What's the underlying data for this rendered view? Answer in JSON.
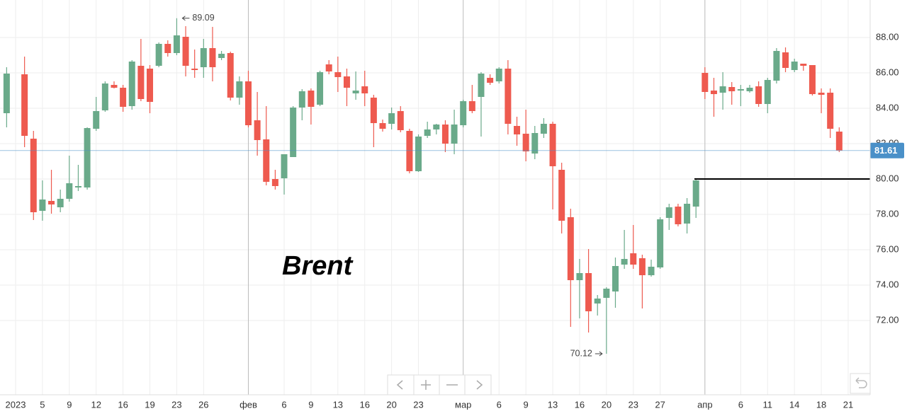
{
  "chart_data": {
    "type": "candlestick",
    "title": "Brent",
    "categories": [
      null,
      "2023",
      null,
      null,
      "5",
      null,
      null,
      "9",
      null,
      null,
      "12",
      null,
      null,
      "16",
      null,
      null,
      "19",
      null,
      null,
      "23",
      null,
      null,
      "26",
      null,
      null,
      null,
      null,
      "фев",
      null,
      null,
      null,
      "6",
      null,
      null,
      "9",
      null,
      null,
      "13",
      null,
      null,
      "16",
      null,
      null,
      "20",
      null,
      null,
      "23",
      null,
      null,
      null,
      null,
      "мар",
      null,
      null,
      null,
      "6",
      null,
      null,
      "9",
      null,
      null,
      "13",
      null,
      null,
      "16",
      null,
      null,
      "20",
      null,
      null,
      "23",
      null,
      null,
      "27",
      null,
      null,
      null,
      null,
      "апр",
      null,
      null,
      null,
      "6",
      null,
      null,
      "11",
      null,
      null,
      "14",
      null,
      null,
      "18",
      null,
      null,
      "21"
    ],
    "open": [
      83.72,
      null,
      85.92,
      82.28,
      78.2,
      78.76,
      78.4,
      78.88,
      79.52,
      79.52,
      82.84,
      83.88,
      85.32,
      85.16,
      84.12,
      86.4,
      86.24,
      86.4,
      87.64,
      87.12,
      88.04,
      86.24,
      86.32,
      87.4,
      86.84,
      87.12,
      84.6,
      85.52,
      83.32,
      82.24,
      80.0,
      80.04,
      81.24,
      84.04,
      85.0,
      84.2,
      86.48,
      86.04,
      85.8,
      84.84,
      85.24,
      84.6,
      83.16,
      83.12,
      83.84,
      82.72,
      80.44,
      82.44,
      82.8,
      83.08,
      82.0,
      83.04,
      84.4,
      84.64,
      85.72,
      85.52,
      86.24,
      83.0,
      82.56,
      81.44,
      82.56,
      83.12,
      80.52,
      77.84,
      74.28,
      74.68,
      72.96,
      73.28,
      73.64,
      75.16,
      75.8,
      75.52,
      74.56,
      75.0,
      77.8,
      78.44,
      77.48,
      78.44,
      86.0,
      85.0,
      84.88,
      85.2,
      85.0,
      84.96,
      85.24,
      84.24,
      85.56,
      87.16,
      86.16,
      86.52,
      86.44,
      84.88,
      84.88,
      82.68,
      null
    ],
    "high": [
      86.32,
      null,
      86.92,
      82.72,
      79.92,
      80.52,
      79.4,
      81.32,
      80.8,
      82.92,
      84.64,
      85.52,
      85.52,
      85.32,
      86.72,
      87.92,
      86.44,
      87.72,
      87.84,
      89.09,
      88.64,
      87.32,
      87.92,
      88.6,
      87.24,
      87.2,
      85.8,
      86.12,
      84.92,
      84.12,
      80.52,
      81.4,
      84.12,
      85.08,
      85.12,
      86.12,
      86.72,
      86.92,
      86.24,
      86.08,
      86.12,
      84.76,
      83.36,
      84.04,
      84.12,
      82.84,
      82.52,
      83.24,
      83.12,
      83.32,
      83.92,
      84.48,
      85.32,
      86.04,
      85.92,
      86.32,
      86.72,
      83.52,
      83.92,
      83.0,
      83.44,
      83.24,
      80.92,
      78.32,
      75.48,
      76.04,
      73.44,
      73.88,
      75.56,
      77.12,
      77.4,
      75.72,
      75.44,
      77.84,
      78.6,
      78.6,
      78.92,
      80.0,
      86.32,
      85.72,
      86.04,
      85.48,
      85.32,
      85.32,
      85.52,
      85.72,
      87.4,
      87.44,
      86.8,
      86.52,
      86.44,
      85.12,
      85.12,
      82.92,
      null
    ],
    "low": [
      82.92,
      null,
      81.8,
      77.68,
      77.64,
      78.04,
      78.12,
      78.72,
      79.32,
      79.4,
      82.72,
      83.8,
      85.12,
      83.8,
      83.92,
      84.4,
      83.72,
      86.32,
      86.92,
      87.0,
      85.8,
      85.72,
      85.72,
      85.52,
      86.72,
      84.44,
      84.2,
      82.92,
      81.32,
      79.64,
      79.4,
      79.12,
      81.24,
      83.32,
      83.08,
      84.12,
      85.92,
      84.92,
      84.12,
      84.48,
      84.12,
      81.8,
      82.68,
      82.8,
      82.64,
      80.32,
      80.4,
      82.32,
      82.52,
      81.52,
      81.4,
      82.92,
      83.72,
      82.4,
      85.32,
      85.4,
      82.52,
      81.88,
      81.0,
      81.12,
      82.32,
      78.28,
      76.92,
      71.64,
      72.12,
      71.32,
      72.28,
      70.12,
      72.72,
      74.92,
      74.92,
      72.68,
      74.48,
      74.92,
      77.12,
      77.32,
      76.92,
      77.8,
      84.52,
      83.52,
      83.92,
      84.2,
      84.12,
      84.88,
      84.08,
      83.72,
      85.4,
      86.04,
      86.04,
      86.12,
      84.72,
      83.72,
      82.32,
      81.52,
      null
    ],
    "close": [
      85.96,
      null,
      82.44,
      78.12,
      78.84,
      78.56,
      78.88,
      79.76,
      79.6,
      82.88,
      83.84,
      85.4,
      85.16,
      84.08,
      86.64,
      84.52,
      84.36,
      87.64,
      87.12,
      88.12,
      86.4,
      86.16,
      87.4,
      86.32,
      87.08,
      84.6,
      85.52,
      83.04,
      82.2,
      79.84,
      79.6,
      81.4,
      84.04,
      84.96,
      84.08,
      86.04,
      86.08,
      85.76,
      85.16,
      85.0,
      84.84,
      83.16,
      82.84,
      83.72,
      82.76,
      80.44,
      82.4,
      82.8,
      83.08,
      82.0,
      83.08,
      84.4,
      83.84,
      85.96,
      85.44,
      86.24,
      83.12,
      82.52,
      81.56,
      82.6,
      83.12,
      80.72,
      77.64,
      74.28,
      74.68,
      72.52,
      73.24,
      73.8,
      75.08,
      75.48,
      75.16,
      74.56,
      75.04,
      77.72,
      78.4,
      77.44,
      78.6,
      79.92,
      84.92,
      84.8,
      85.24,
      84.96,
      85.08,
      85.16,
      84.24,
      85.6,
      87.24,
      86.28,
      86.64,
      86.4,
      84.8,
      84.76,
      82.84,
      81.61,
      null
    ],
    "up_color": "#6aaa8a",
    "down_color": "#ee5a4f",
    "ylim": [
      67.8,
      90.12
    ],
    "yticks": [
      {
        "value": 72,
        "label": "72.00"
      },
      {
        "value": 74,
        "label": "74.00"
      },
      {
        "value": 76,
        "label": "76.00"
      },
      {
        "value": 78,
        "label": "78.00"
      },
      {
        "value": 80,
        "label": "80.00"
      },
      {
        "value": 82,
        "label": "82.00"
      },
      {
        "value": 84,
        "label": "84.00"
      },
      {
        "value": 86,
        "label": "86.00"
      },
      {
        "value": 88,
        "label": "88.00"
      }
    ],
    "grid": true,
    "annotations": [
      89.09,
      70.12
    ],
    "last_price": 81.61,
    "last_price_color": "#4a90c8",
    "level": 80
  }
}
